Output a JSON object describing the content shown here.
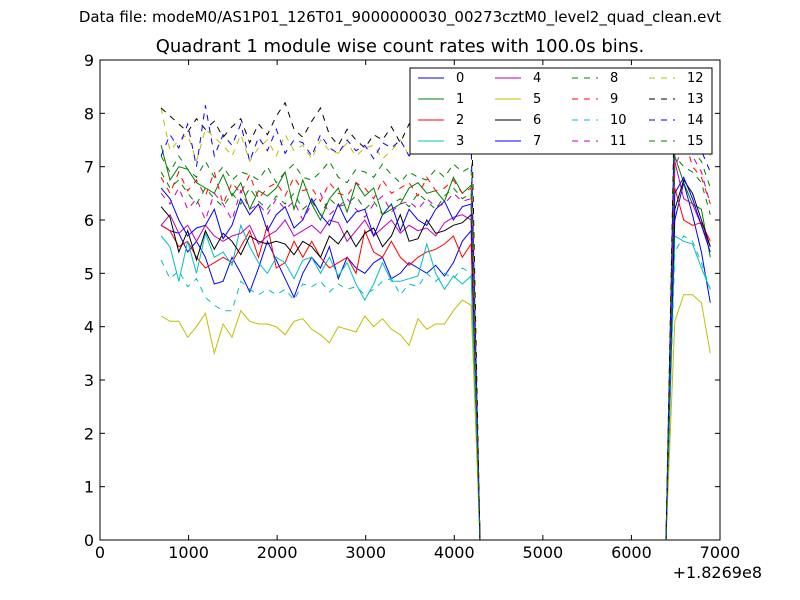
{
  "figure": {
    "suptitle": "Data file: modeM0/AS1P01_126T01_9000000030_00273cztM0_level2_quad_clean.evt"
  },
  "chart_data": {
    "type": "line",
    "title": "Quadrant 1 module wise count rates with 100.0s bins.",
    "xlabel": "",
    "ylabel": "",
    "x_offset_label": "+1.8269e8",
    "xlim": [
      0,
      7000
    ],
    "ylim": [
      0,
      9
    ],
    "xticks": [
      "0",
      "1000",
      "2000",
      "3000",
      "4000",
      "5000",
      "6000",
      "7000"
    ],
    "yticks": [
      "0",
      "1",
      "2",
      "3",
      "4",
      "5",
      "6",
      "7",
      "8",
      "9"
    ],
    "grid": false,
    "legend_position": "top-right",
    "legend_columns": 4,
    "x": [
      690,
      790,
      890,
      990,
      1090,
      1190,
      1290,
      1390,
      1490,
      1590,
      1690,
      1790,
      1890,
      1990,
      2090,
      2190,
      2290,
      2390,
      2490,
      2590,
      2690,
      2790,
      2890,
      2990,
      3090,
      3190,
      3290,
      3390,
      3490,
      3590,
      3690,
      3790,
      3890,
      3990,
      4090,
      4190,
      4290,
      4390,
      4490,
      4590,
      4690,
      4790,
      4890,
      4990,
      5090,
      5190,
      5290,
      5390,
      5490,
      5590,
      5690,
      5790,
      5890,
      5990,
      6090,
      6190,
      6290,
      6390,
      6490,
      6590,
      6690,
      6790,
      6890
    ],
    "series": [
      {
        "name": "0",
        "color": "#0000ff",
        "dash": "solid",
        "values": [
          5.9,
          5.8,
          5.75,
          5.4,
          5.6,
          5.3,
          4.8,
          4.85,
          5.3,
          5.0,
          4.65,
          5.1,
          5.6,
          5.25,
          4.9,
          4.55,
          5.0,
          5.3,
          5.1,
          5.5,
          4.9,
          5.3,
          5.1,
          5.0,
          5.2,
          5.3,
          4.9,
          5.0,
          5.2,
          5.1,
          5.0,
          5.15,
          4.95,
          5.2,
          5.6,
          5.8,
          0.0,
          0.0,
          0.0,
          0.0,
          0.0,
          0.0,
          0.0,
          0.0,
          0.0,
          0.0,
          0.0,
          0.0,
          0.0,
          0.0,
          0.0,
          0.0,
          0.0,
          0.0,
          0.0,
          0.0,
          0.0,
          0.0,
          6.0,
          6.7,
          6.1,
          5.4,
          4.45
        ]
      },
      {
        "name": "1",
        "color": "#008000",
        "dash": "solid",
        "values": [
          7.4,
          6.75,
          7.0,
          6.95,
          6.7,
          6.6,
          6.5,
          6.85,
          6.45,
          6.7,
          6.2,
          6.55,
          6.45,
          6.6,
          6.9,
          6.2,
          6.75,
          6.3,
          6.0,
          6.4,
          6.6,
          6.15,
          6.7,
          6.45,
          6.6,
          6.1,
          6.2,
          6.3,
          6.6,
          6.7,
          6.5,
          6.55,
          6.35,
          6.8,
          6.5,
          6.65,
          0.0,
          0.0,
          0.0,
          0.0,
          0.0,
          0.0,
          0.0,
          0.0,
          0.0,
          0.0,
          0.0,
          0.0,
          0.0,
          0.0,
          0.0,
          0.0,
          0.0,
          0.0,
          0.0,
          0.0,
          0.0,
          0.0,
          7.2,
          6.7,
          6.3,
          6.2,
          5.3
        ]
      },
      {
        "name": "2",
        "color": "#ff0000",
        "dash": "solid",
        "values": [
          5.9,
          5.8,
          5.5,
          5.6,
          5.3,
          5.1,
          5.2,
          5.3,
          5.2,
          5.5,
          5.8,
          5.3,
          5.9,
          5.1,
          5.2,
          5.6,
          5.3,
          5.6,
          5.3,
          5.1,
          5.2,
          5.3,
          5.0,
          5.8,
          5.4,
          5.3,
          5.6,
          5.3,
          5.15,
          5.3,
          5.4,
          5.45,
          5.55,
          5.7,
          5.3,
          5.55,
          0.0,
          0.0,
          0.0,
          0.0,
          0.0,
          0.0,
          0.0,
          0.0,
          0.0,
          0.0,
          0.0,
          0.0,
          0.0,
          0.0,
          0.0,
          0.0,
          0.0,
          0.0,
          0.0,
          0.0,
          0.0,
          0.0,
          6.6,
          6.0,
          5.9,
          5.95,
          5.6
        ]
      },
      {
        "name": "3",
        "color": "#00bfbf",
        "dash": "solid",
        "values": [
          5.7,
          5.5,
          4.85,
          5.6,
          5.0,
          5.75,
          5.3,
          5.4,
          5.15,
          5.9,
          5.5,
          5.2,
          5.0,
          5.3,
          5.2,
          4.9,
          5.25,
          5.3,
          5.0,
          5.3,
          4.95,
          5.2,
          4.8,
          4.5,
          4.8,
          5.2,
          4.85,
          4.85,
          4.9,
          4.95,
          5.55,
          5.0,
          4.7,
          4.95,
          4.8,
          4.95,
          0.0,
          0.0,
          0.0,
          0.0,
          0.0,
          0.0,
          0.0,
          0.0,
          0.0,
          0.0,
          0.0,
          0.0,
          0.0,
          0.0,
          0.0,
          0.0,
          0.0,
          0.0,
          0.0,
          0.0,
          0.0,
          0.0,
          5.7,
          5.6,
          5.55,
          5.1,
          4.7
        ]
      },
      {
        "name": "4",
        "color": "#bf00bf",
        "dash": "solid",
        "values": [
          5.9,
          6.1,
          5.75,
          5.9,
          5.6,
          5.9,
          5.7,
          5.6,
          5.7,
          5.75,
          5.9,
          5.55,
          5.7,
          5.8,
          6.0,
          5.7,
          5.8,
          5.9,
          5.75,
          6.0,
          5.95,
          5.6,
          5.8,
          6.0,
          5.7,
          5.85,
          6.0,
          5.75,
          5.9,
          5.8,
          5.85,
          5.7,
          5.95,
          6.05,
          6.1,
          6.0,
          0.0,
          0.0,
          0.0,
          0.0,
          0.0,
          0.0,
          0.0,
          0.0,
          0.0,
          0.0,
          0.0,
          0.0,
          0.0,
          0.0,
          0.0,
          0.0,
          0.0,
          0.0,
          0.0,
          0.0,
          0.0,
          0.0,
          7.1,
          6.4,
          6.3,
          5.9,
          5.5
        ]
      },
      {
        "name": "5",
        "color": "#bfbf00",
        "dash": "solid",
        "values": [
          4.2,
          4.1,
          4.1,
          3.8,
          4.0,
          4.25,
          3.5,
          4.05,
          3.8,
          4.3,
          4.1,
          4.05,
          4.05,
          4.0,
          3.85,
          4.1,
          4.15,
          3.95,
          3.85,
          3.7,
          4.0,
          3.95,
          3.9,
          4.2,
          4.0,
          4.15,
          3.95,
          3.85,
          3.65,
          4.15,
          3.95,
          4.05,
          4.05,
          4.3,
          4.5,
          4.4,
          0.0,
          0.0,
          0.0,
          0.0,
          0.0,
          0.0,
          0.0,
          0.0,
          0.0,
          0.0,
          0.0,
          0.0,
          0.0,
          0.0,
          0.0,
          0.0,
          0.0,
          0.0,
          0.0,
          0.0,
          0.0,
          0.0,
          4.1,
          4.6,
          4.6,
          4.45,
          3.5
        ]
      },
      {
        "name": "6",
        "color": "#000000",
        "dash": "solid",
        "values": [
          6.25,
          6.05,
          5.4,
          5.8,
          5.25,
          5.8,
          5.45,
          5.75,
          5.6,
          5.35,
          5.7,
          5.6,
          5.55,
          5.6,
          5.55,
          5.35,
          5.6,
          5.5,
          5.3,
          5.7,
          5.55,
          5.8,
          5.5,
          5.75,
          5.85,
          5.5,
          5.7,
          6.1,
          5.6,
          5.65,
          6.0,
          5.75,
          5.8,
          5.9,
          5.95,
          6.1,
          0.0,
          0.0,
          0.0,
          0.0,
          0.0,
          0.0,
          0.0,
          0.0,
          0.0,
          0.0,
          0.0,
          0.0,
          0.0,
          0.0,
          0.0,
          0.0,
          0.0,
          0.0,
          0.0,
          0.0,
          0.0,
          0.0,
          6.2,
          6.75,
          6.5,
          6.0,
          5.5
        ]
      },
      {
        "name": "7",
        "color": "#0000ff",
        "dash": "solid",
        "values": [
          6.6,
          6.4,
          6.0,
          5.7,
          5.85,
          5.9,
          6.2,
          5.65,
          5.9,
          6.4,
          6.1,
          6.3,
          5.8,
          6.1,
          6.25,
          5.85,
          6.0,
          6.4,
          6.1,
          5.9,
          6.3,
          5.95,
          6.15,
          6.2,
          5.7,
          6.1,
          6.3,
          5.8,
          6.2,
          6.0,
          5.9,
          6.2,
          6.35,
          6.0,
          6.25,
          6.3,
          0.0,
          0.0,
          0.0,
          0.0,
          0.0,
          0.0,
          0.0,
          0.0,
          0.0,
          0.0,
          0.0,
          0.0,
          0.0,
          0.0,
          0.0,
          0.0,
          0.0,
          0.0,
          0.0,
          0.0,
          0.0,
          0.0,
          6.5,
          6.8,
          6.4,
          5.9,
          5.4
        ]
      },
      {
        "name": "8",
        "color": "#008000",
        "dash": "dashed",
        "values": [
          7.2,
          6.9,
          7.2,
          6.95,
          6.8,
          7.1,
          6.8,
          7.0,
          6.75,
          6.9,
          6.85,
          6.75,
          7.0,
          6.7,
          6.9,
          7.05,
          6.8,
          6.75,
          6.9,
          7.1,
          6.8,
          6.7,
          6.95,
          6.9,
          6.8,
          7.05,
          6.85,
          6.7,
          6.9,
          6.8,
          6.75,
          6.95,
          6.8,
          7.05,
          6.9,
          7.0,
          0.0,
          0.0,
          0.0,
          0.0,
          0.0,
          0.0,
          0.0,
          0.0,
          0.0,
          0.0,
          0.0,
          0.0,
          0.0,
          0.0,
          0.0,
          0.0,
          0.0,
          0.0,
          0.0,
          0.0,
          0.0,
          0.0,
          7.6,
          7.4,
          7.3,
          7.1,
          6.6
        ]
      },
      {
        "name": "9",
        "color": "#ff0000",
        "dash": "dashed",
        "values": [
          6.8,
          6.5,
          6.9,
          6.55,
          6.75,
          6.45,
          6.9,
          6.3,
          6.7,
          6.5,
          6.85,
          6.4,
          6.6,
          6.7,
          6.45,
          6.8,
          6.55,
          6.6,
          6.35,
          6.7,
          6.5,
          6.45,
          6.7,
          6.6,
          6.4,
          6.75,
          6.5,
          6.6,
          6.7,
          6.45,
          6.8,
          6.55,
          6.6,
          6.75,
          6.5,
          6.6,
          0.0,
          0.0,
          0.0,
          0.0,
          0.0,
          0.0,
          0.0,
          0.0,
          0.0,
          0.0,
          0.0,
          0.0,
          0.0,
          0.0,
          0.0,
          0.0,
          0.0,
          0.0,
          0.0,
          0.0,
          0.0,
          0.0,
          7.3,
          7.6,
          7.0,
          6.8,
          6.3
        ]
      },
      {
        "name": "10",
        "color": "#00bfbf",
        "dash": "dashed",
        "values": [
          5.25,
          4.9,
          5.05,
          4.75,
          4.9,
          4.55,
          4.4,
          4.3,
          4.3,
          4.85,
          4.7,
          4.6,
          4.7,
          4.6,
          4.7,
          4.5,
          4.8,
          4.75,
          4.85,
          4.65,
          4.8,
          4.7,
          4.75,
          4.6,
          4.7,
          4.85,
          4.9,
          4.6,
          4.8,
          4.75,
          5.0,
          4.85,
          5.0,
          4.9,
          5.1,
          5.0,
          0.0,
          0.0,
          0.0,
          0.0,
          0.0,
          0.0,
          0.0,
          0.0,
          0.0,
          0.0,
          0.0,
          0.0,
          0.0,
          0.0,
          0.0,
          0.0,
          0.0,
          0.0,
          0.0,
          0.0,
          0.0,
          0.0,
          5.4,
          5.7,
          5.6,
          5.2,
          4.7
        ]
      },
      {
        "name": "11",
        "color": "#bf00bf",
        "dash": "dashed",
        "values": [
          6.5,
          6.3,
          6.6,
          6.2,
          6.4,
          6.0,
          6.5,
          6.3,
          6.0,
          6.55,
          6.2,
          6.3,
          6.1,
          6.4,
          6.2,
          6.35,
          6.0,
          6.3,
          6.5,
          6.1,
          6.25,
          6.4,
          6.2,
          6.05,
          6.3,
          6.45,
          6.15,
          6.3,
          6.35,
          6.2,
          6.4,
          6.25,
          6.3,
          6.5,
          6.35,
          6.4,
          0.0,
          0.0,
          0.0,
          0.0,
          0.0,
          0.0,
          0.0,
          0.0,
          0.0,
          0.0,
          0.0,
          0.0,
          0.0,
          0.0,
          0.0,
          0.0,
          0.0,
          0.0,
          0.0,
          0.0,
          0.0,
          0.0,
          7.0,
          7.4,
          7.2,
          6.9,
          6.3
        ]
      },
      {
        "name": "12",
        "color": "#bfbf00",
        "dash": "dashed",
        "values": [
          8.1,
          7.3,
          7.5,
          7.6,
          7.1,
          7.7,
          7.55,
          7.4,
          7.2,
          7.6,
          7.1,
          7.35,
          7.5,
          7.2,
          7.6,
          7.3,
          7.4,
          7.15,
          7.5,
          7.3,
          7.25,
          7.45,
          7.2,
          7.35,
          7.4,
          7.15,
          7.3,
          7.5,
          7.2,
          7.35,
          7.4,
          7.25,
          7.45,
          7.3,
          7.5,
          7.4,
          0.0,
          0.0,
          0.0,
          0.0,
          0.0,
          0.0,
          0.0,
          0.0,
          0.0,
          0.0,
          0.0,
          0.0,
          0.0,
          0.0,
          0.0,
          0.0,
          0.0,
          0.0,
          0.0,
          0.0,
          0.0,
          0.0,
          8.1,
          8.4,
          8.3,
          8.1,
          7.2
        ]
      },
      {
        "name": "13",
        "color": "#000000",
        "dash": "dashed",
        "values": [
          8.1,
          7.95,
          7.8,
          7.65,
          7.9,
          7.7,
          7.85,
          7.55,
          7.75,
          7.9,
          7.45,
          7.8,
          7.6,
          7.95,
          8.2,
          7.7,
          7.55,
          7.85,
          8.1,
          7.6,
          7.4,
          7.7,
          7.5,
          7.35,
          7.6,
          7.5,
          7.75,
          7.45,
          7.8,
          7.6,
          7.9,
          7.7,
          7.85,
          8.2,
          7.95,
          8.4,
          0.0,
          0.0,
          0.0,
          0.0,
          0.0,
          0.0,
          0.0,
          0.0,
          0.0,
          0.0,
          0.0,
          0.0,
          0.0,
          0.0,
          0.0,
          0.0,
          0.0,
          0.0,
          0.0,
          0.0,
          0.0,
          0.0,
          8.5,
          8.3,
          8.2,
          7.9,
          7.2
        ]
      },
      {
        "name": "14",
        "color": "#0000ff",
        "dash": "dashed",
        "values": [
          7.2,
          7.6,
          7.35,
          7.8,
          7.0,
          8.15,
          7.2,
          7.6,
          7.4,
          7.8,
          7.1,
          7.55,
          7.3,
          7.7,
          7.25,
          7.5,
          7.45,
          7.2,
          7.6,
          7.35,
          7.25,
          7.5,
          7.3,
          7.4,
          7.15,
          7.45,
          7.35,
          7.5,
          7.2,
          7.4,
          7.55,
          7.3,
          7.5,
          7.6,
          7.4,
          7.5,
          0.0,
          0.0,
          0.0,
          0.0,
          0.0,
          0.0,
          0.0,
          0.0,
          0.0,
          0.0,
          0.0,
          0.0,
          0.0,
          0.0,
          0.0,
          0.0,
          0.0,
          0.0,
          0.0,
          0.0,
          0.0,
          0.0,
          8.2,
          7.8,
          7.6,
          7.3,
          6.9
        ]
      },
      {
        "name": "15",
        "color": "#008000",
        "dash": "dashed",
        "values": [
          6.9,
          6.6,
          6.75,
          6.5,
          6.3,
          6.6,
          6.4,
          6.25,
          6.5,
          6.3,
          6.6,
          6.35,
          6.2,
          6.45,
          6.3,
          6.5,
          6.2,
          6.35,
          6.1,
          6.4,
          6.25,
          6.3,
          6.45,
          6.2,
          6.35,
          6.1,
          6.3,
          6.4,
          6.25,
          6.5,
          6.35,
          6.2,
          6.45,
          6.6,
          6.4,
          6.5,
          0.0,
          0.0,
          0.0,
          0.0,
          0.0,
          0.0,
          0.0,
          0.0,
          0.0,
          0.0,
          0.0,
          0.0,
          0.0,
          0.0,
          0.0,
          0.0,
          0.0,
          0.0,
          0.0,
          0.0,
          0.0,
          0.0,
          7.2,
          7.0,
          6.9,
          6.7,
          6.1
        ]
      }
    ]
  }
}
